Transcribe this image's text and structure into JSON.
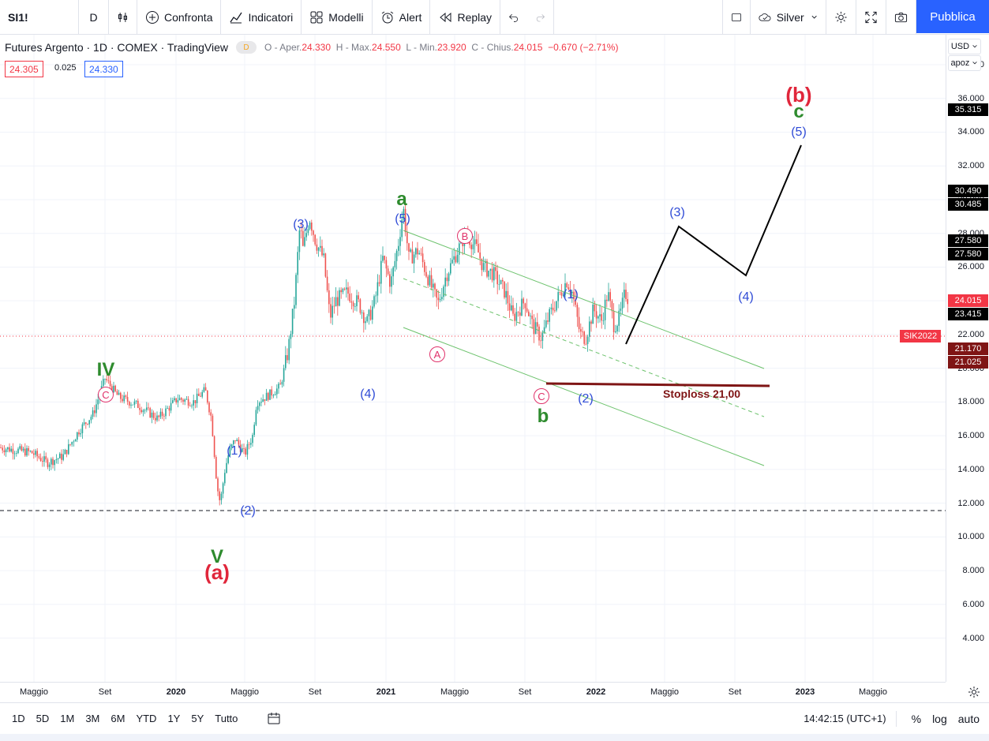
{
  "toolbar": {
    "symbol": "SI1!",
    "interval": "D",
    "compare": "Confronta",
    "indicators": "Indicatori",
    "templates": "Modelli",
    "alert": "Alert",
    "replay": "Replay",
    "layout_name": "Silver",
    "publish": "Pubblica"
  },
  "legend": {
    "title": "Futures Argento · 1D · COMEX · TradingView",
    "badge": "D",
    "open_label": "O - Aper.",
    "open": "24.330",
    "high_label": "H - Max.",
    "high": "24.550",
    "low_label": "L - Min.",
    "low": "23.920",
    "close_label": "C - Chius.",
    "close": "24.015",
    "change": "−0.670 (−2.71%)",
    "bid": "24.305",
    "spread": "0.025",
    "ask": "24.330"
  },
  "axis_controls": {
    "currency": "USD",
    "scale": "apoz"
  },
  "price_axis": {
    "ticks": [
      "38.000",
      "36.000",
      "34.000",
      "32.000",
      "30.000",
      "28.000",
      "26.000",
      "24.000",
      "22.000",
      "20.000",
      "18.000",
      "16.000",
      "14.000",
      "12.000",
      "10.000",
      "8.000",
      "6.000",
      "4.000"
    ],
    "badges": [
      {
        "text": "35.315",
        "bg": "#000000"
      },
      {
        "text": "30.490",
        "bg": "#000000"
      },
      {
        "text": "30.485",
        "bg": "#000000"
      },
      {
        "text": "27.580",
        "bg": "#000000"
      },
      {
        "text": "27.580",
        "bg": "#000000"
      },
      {
        "text": "24.015",
        "bg": "#f23645"
      },
      {
        "text": "23.415",
        "bg": "#000000"
      },
      {
        "text": "21.170",
        "bg": "#7f1515"
      },
      {
        "text": "21.025",
        "bg": "#7f1515"
      }
    ],
    "symbol_tag": "SIK2022"
  },
  "time_axis": [
    "Maggio",
    "Set",
    "2020",
    "Maggio",
    "Set",
    "2021",
    "Maggio",
    "Set",
    "2022",
    "Maggio",
    "Set",
    "2023",
    "Maggio"
  ],
  "bottom_bar": {
    "ranges": [
      "1D",
      "5D",
      "1M",
      "3M",
      "6M",
      "YTD",
      "1Y",
      "5Y",
      "Tutto"
    ],
    "clock": "14:42:15 (UTC+1)",
    "percent": "%",
    "log": "log",
    "auto": "auto"
  },
  "annotations": {
    "IV": "IV",
    "V": "V",
    "a_paren": "(a)",
    "b_paren": "(b)",
    "a": "a",
    "b": "b",
    "c": "c",
    "w3": "(3)",
    "w4": "(4)",
    "w5": "(5)",
    "w1": "(1)",
    "w2": "(2)",
    "circ_A": "A",
    "circ_B": "B",
    "circ_C": "C",
    "stoploss": "Stoploss 21,00"
  },
  "colors": {
    "up": "#26a69a",
    "down": "#ef5350",
    "wave_blue": "#2f4bd6",
    "wave_green": "#2e8b2e",
    "wave_red": "#e0263b",
    "channel": "#6cc26c",
    "stoploss": "#7f1515",
    "accent": "#2962ff"
  }
}
